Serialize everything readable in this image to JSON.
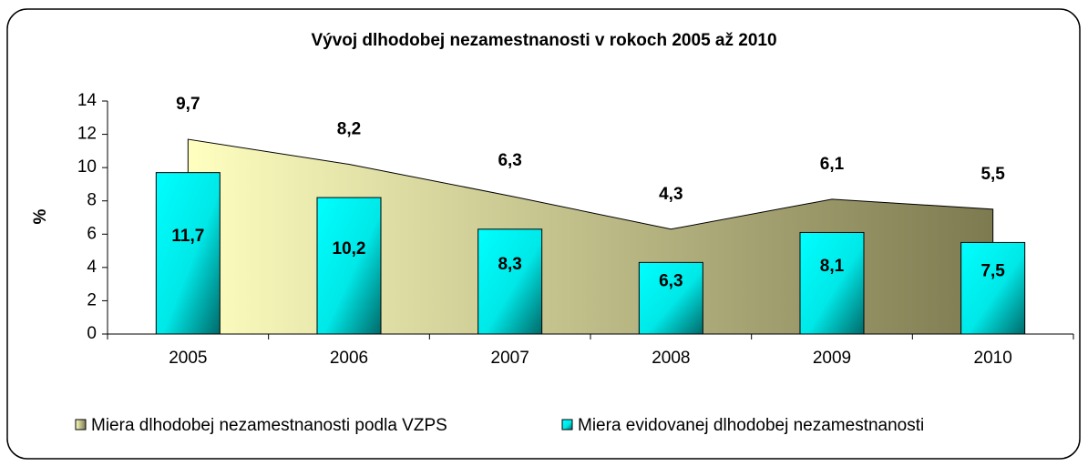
{
  "chart_data": {
    "type": "bar+area",
    "title": "Vývoj dlhodobej nezamestnanosti v rokoch 2005 až 2010",
    "y_label": "%",
    "categories": [
      "2005",
      "2006",
      "2007",
      "2008",
      "2009",
      "2010"
    ],
    "series": [
      {
        "name": "Miera dlhodobej nezamestnanosti podla VZPS",
        "type": "area",
        "color": "#b9b36e",
        "values": [
          11.7,
          10.2,
          8.3,
          6.3,
          8.1,
          7.5
        ],
        "value_labels": [
          "11,7",
          "10,2",
          "8,3",
          "6,3",
          "8,1",
          "7,5"
        ]
      },
      {
        "name": "Miera evidovanej dlhodobej nezamestnanosti",
        "type": "bar",
        "color": "#00e0e0",
        "values": [
          9.7,
          8.2,
          6.3,
          4.3,
          6.1,
          5.5
        ],
        "value_labels": [
          "9,7",
          "8,2",
          "6,3",
          "4,3",
          "6,1",
          "5,5"
        ]
      }
    ],
    "ylim": [
      0,
      14
    ],
    "yticks": [
      0,
      2,
      4,
      6,
      8,
      10,
      12,
      14
    ],
    "legend": "bottom"
  }
}
